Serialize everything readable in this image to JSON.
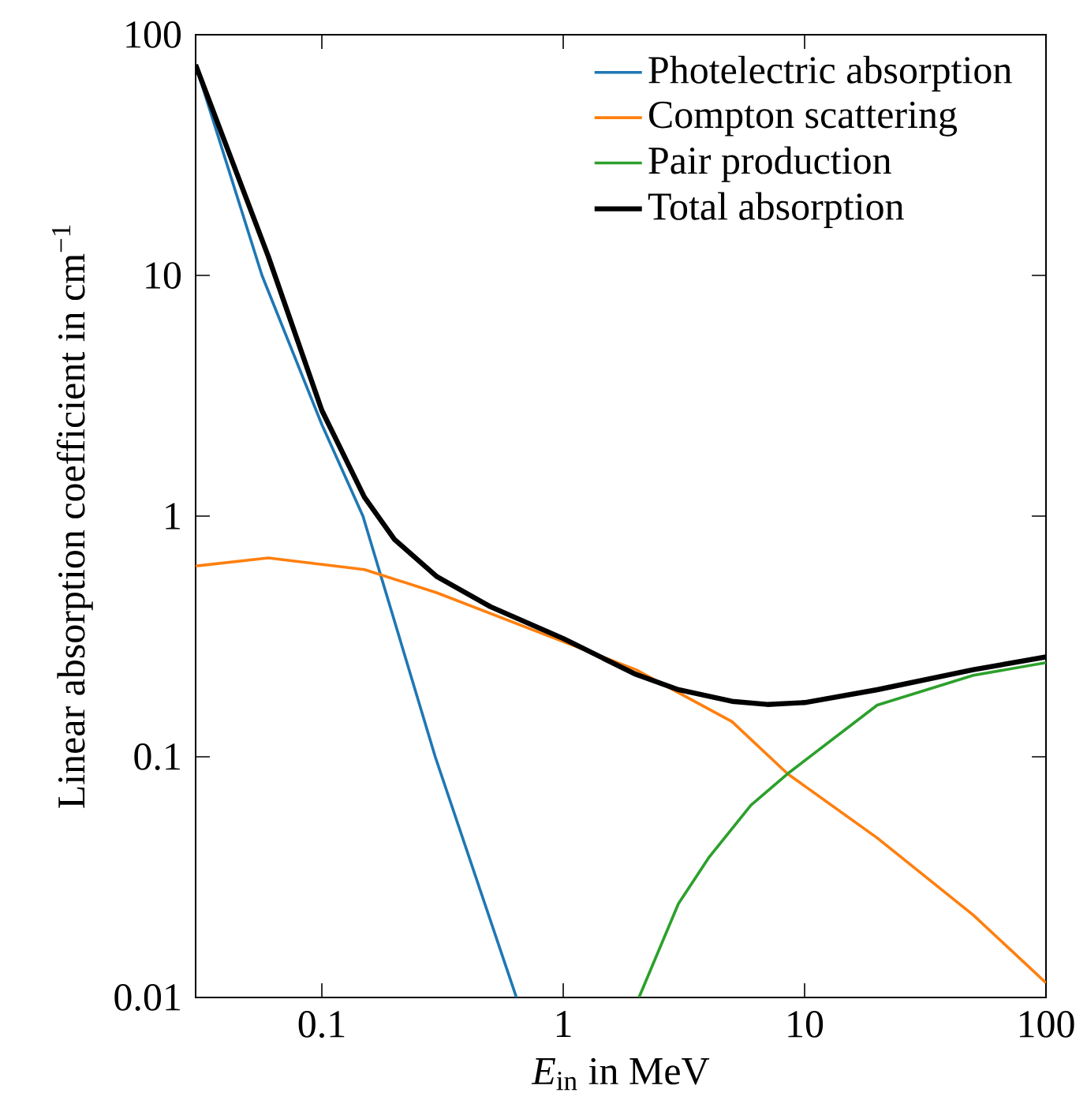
{
  "chart_data": {
    "type": "line",
    "xlabel": "*E*$_{in}$ in MeV",
    "ylabel": "Linear absorption coefficient in cm$^{−1}$",
    "log": "xy",
    "xlim": [
      0.03,
      100
    ],
    "ylim": [
      0.01,
      100
    ],
    "xticks": [
      0.1,
      1,
      10,
      100
    ],
    "yticks": [
      0.01,
      0.1,
      1,
      10,
      100
    ],
    "legend": "top right",
    "grid": false,
    "line_style": "solid",
    "marker": "none",
    "series": [
      {
        "name": "Photelectric absorption",
        "color": "#1f77b4",
        "x": [
          0.03,
          0.0565,
          0.1,
          0.148,
          0.295,
          0.64
        ],
        "values": [
          75,
          10,
          2.4,
          1,
          0.1,
          0.01
        ]
      },
      {
        "name": "Compton scattering",
        "color": "#ff7f0e",
        "x": [
          0.03,
          0.06,
          0.15,
          0.3,
          2,
          5,
          8.5,
          20,
          50,
          100
        ],
        "values": [
          0.62,
          0.67,
          0.6,
          0.48,
          0.23,
          0.14,
          0.085,
          0.046,
          0.022,
          0.0115
        ]
      },
      {
        "name": "Pair production",
        "color": "#2ca02c",
        "x": [
          2.06,
          3,
          4,
          6,
          8.5,
          20,
          50,
          100
        ],
        "values": [
          0.01,
          0.0245,
          0.038,
          0.063,
          0.085,
          0.164,
          0.218,
          0.246
        ]
      },
      {
        "name": "Total absorption",
        "color": "#000000",
        "x": [
          0.03,
          0.06,
          0.1,
          0.15,
          0.2,
          0.3,
          0.5,
          1,
          2,
          3,
          5,
          7,
          10,
          20,
          50,
          100
        ],
        "values": [
          75,
          12,
          2.75,
          1.2,
          0.8,
          0.56,
          0.42,
          0.31,
          0.22,
          0.19,
          0.17,
          0.165,
          0.168,
          0.19,
          0.23,
          0.26
        ]
      }
    ]
  }
}
